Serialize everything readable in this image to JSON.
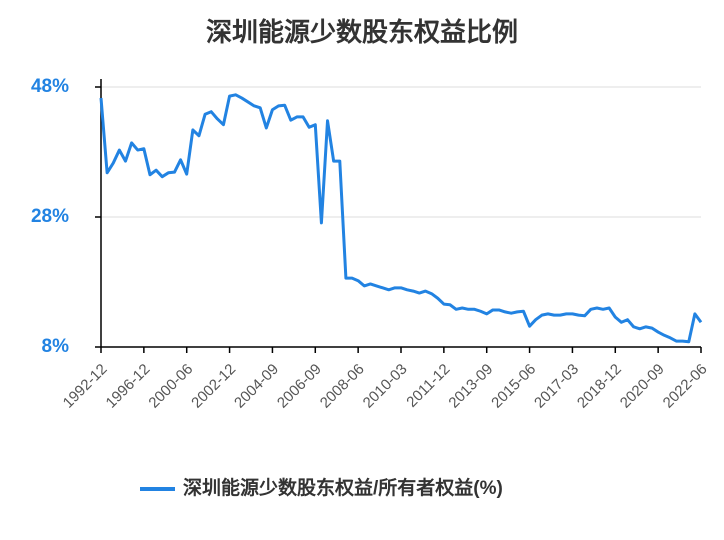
{
  "chart_data": {
    "type": "line",
    "title": "深圳能源少数股东权益比例",
    "categories": [
      "1992-12",
      null,
      null,
      null,
      null,
      null,
      null,
      "1996-12",
      null,
      null,
      null,
      null,
      null,
      null,
      "2000-06",
      null,
      null,
      null,
      null,
      null,
      null,
      "2002-12",
      null,
      null,
      null,
      null,
      null,
      null,
      "2004-09",
      null,
      null,
      null,
      null,
      null,
      null,
      "2006-09",
      null,
      null,
      null,
      null,
      null,
      null,
      "2008-06",
      null,
      null,
      null,
      null,
      null,
      null,
      "2010-03",
      null,
      null,
      null,
      null,
      null,
      null,
      "2011-12",
      null,
      null,
      null,
      null,
      null,
      null,
      "2013-09",
      null,
      null,
      null,
      null,
      null,
      null,
      "2015-06",
      null,
      null,
      null,
      null,
      null,
      null,
      "2017-03",
      null,
      null,
      null,
      null,
      null,
      null,
      "2018-12",
      null,
      null,
      null,
      null,
      null,
      null,
      "2020-09",
      null,
      null,
      null,
      null,
      null,
      null,
      "2022-06"
    ],
    "series": [
      {
        "name": "深圳能源少数股东权益/所有者权益(%)",
        "color": "#2283e2",
        "values": [
          46.3,
          34.8,
          36.3,
          38.3,
          36.6,
          39.4,
          38.3,
          38.5,
          34.5,
          35.2,
          34.2,
          34.8,
          34.9,
          36.8,
          34.6,
          41.4,
          40.5,
          43.8,
          44.2,
          43.1,
          42.2,
          46.6,
          46.8,
          46.3,
          45.7,
          45.1,
          44.8,
          41.7,
          44.5,
          45.1,
          45.2,
          42.9,
          43.4,
          43.4,
          41.8,
          42.2,
          27.1,
          42.8,
          36.6,
          36.6,
          18.6,
          18.6,
          18.2,
          17.4,
          17.7,
          17.4,
          17.1,
          16.8,
          17.1,
          17.1,
          16.8,
          16.6,
          16.3,
          16.6,
          16.2,
          15.5,
          14.6,
          14.5,
          13.8,
          14.0,
          13.8,
          13.8,
          13.5,
          13.1,
          13.7,
          13.7,
          13.4,
          13.2,
          13.4,
          13.5,
          11.2,
          12.2,
          12.9,
          13.1,
          12.9,
          12.9,
          13.1,
          13.1,
          12.9,
          12.8,
          13.8,
          14.0,
          13.8,
          14.0,
          12.6,
          11.8,
          12.2,
          11.1,
          10.8,
          11.1,
          10.9,
          10.3,
          9.8,
          9.4,
          8.9,
          8.9,
          8.8,
          13.1,
          11.8
        ]
      }
    ],
    "ylim": [
      8,
      48
    ],
    "yticks": [
      {
        "value": 8,
        "label": "8%"
      },
      {
        "value": 28,
        "label": "28%"
      },
      {
        "value": 48,
        "label": "48%"
      }
    ],
    "grid": true
  }
}
